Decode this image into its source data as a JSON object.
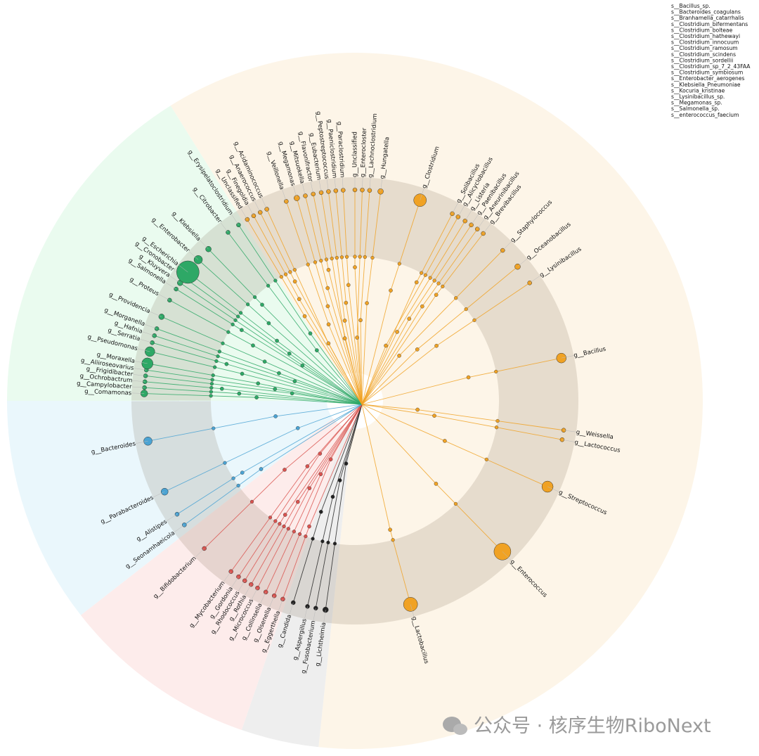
{
  "legend": {
    "items": [
      "s__Bacillus_sp.",
      "s__Bacteroides_coagulans",
      "s__Branhamella_catarrhalis",
      "s__Clostridium_bifermentans",
      "s__Clostridium_bolteae",
      "s__Clostridium_hathewayi",
      "s__Clostridium_innocuum",
      "s__Clostridium_ramosum",
      "s__Clostridium_scindens",
      "s__Clostridium_sordellii",
      "s__Clostridium_sp_7_2_43FAA",
      "s__Clostridium_symbiosum",
      "s__Enterobacter_aerogenes",
      "s__Klebsiella_Pneumoniae",
      "s__Kocuria_kristinae",
      "s__Lysinibacillus_sp.",
      "s__Megamonas_sp.",
      "s__Salmonella_sp.",
      "s__enterococcus_faecium"
    ]
  },
  "tree": {
    "labels": [
      "g__Weissella",
      "g__Lactococcus",
      "g__Streptococcus",
      "g__Enterococcus",
      "g__Lactobacillus",
      "g__Lichtheimia",
      "g__Fusobacterium",
      "g__Aspergillus",
      "g__Candida",
      "g__Eggerthella",
      "g__Olsenella",
      "g__Collinsella",
      "g__Micrococcus",
      "g__Rothia",
      "g__Rhodococcus",
      "g__Gordonia",
      "g__Mycobacterium",
      "g__Bifidobacterium",
      "g__Seonamhaeicola",
      "g__Alistipes",
      "g__Parabacteroides",
      "g__Bacteroides",
      "g__Comamonas",
      "g__Campylobacter",
      "g__Ochrobactrum",
      "g__Frigidibacter",
      "g__Aliiroseovarius",
      "g__Moraxella",
      "g__Pseudomonas",
      "g__Serratia",
      "g__Hafnia",
      "g__Morganella",
      "g__Providencia",
      "g__Proteus",
      "g__Salmonella",
      "g__Kluyvera",
      "g__Cronobacter",
      "g__Escherichia",
      "g__Enterobacter",
      "g__Klebsiella",
      "g__Citrobacter",
      "g__Erysipelatoclostridium",
      "g__Unclassified",
      "g__Finegoldia",
      "g__Anaerococcus",
      "g__Acidaminococcus",
      "g__Veillonella",
      "g__Megamonas",
      "g__Mitsuokella",
      "g__Flavonifractor",
      "g__Eubacterium",
      "g__Peptostreptococcus",
      "g__Paeniclostridium",
      "g__Paraclostridium",
      "g__Unclassified",
      "g__Enterocloster",
      "g__Lachnoclostridium",
      "g__Hungatella",
      "g__Clostridium",
      "g__Solibacillus",
      "g__Alicyclobacillus",
      "g__Listeria",
      "g__Paenibacillus",
      "g__Aneurinibacillus",
      "g__Brevibacillus",
      "g__Staphylococcus",
      "g__Oceanobacillus",
      "g__Lysinibacillus",
      "g__Bacillus"
    ]
  },
  "watermark": "公众号 · 核序生物RiboNext"
}
